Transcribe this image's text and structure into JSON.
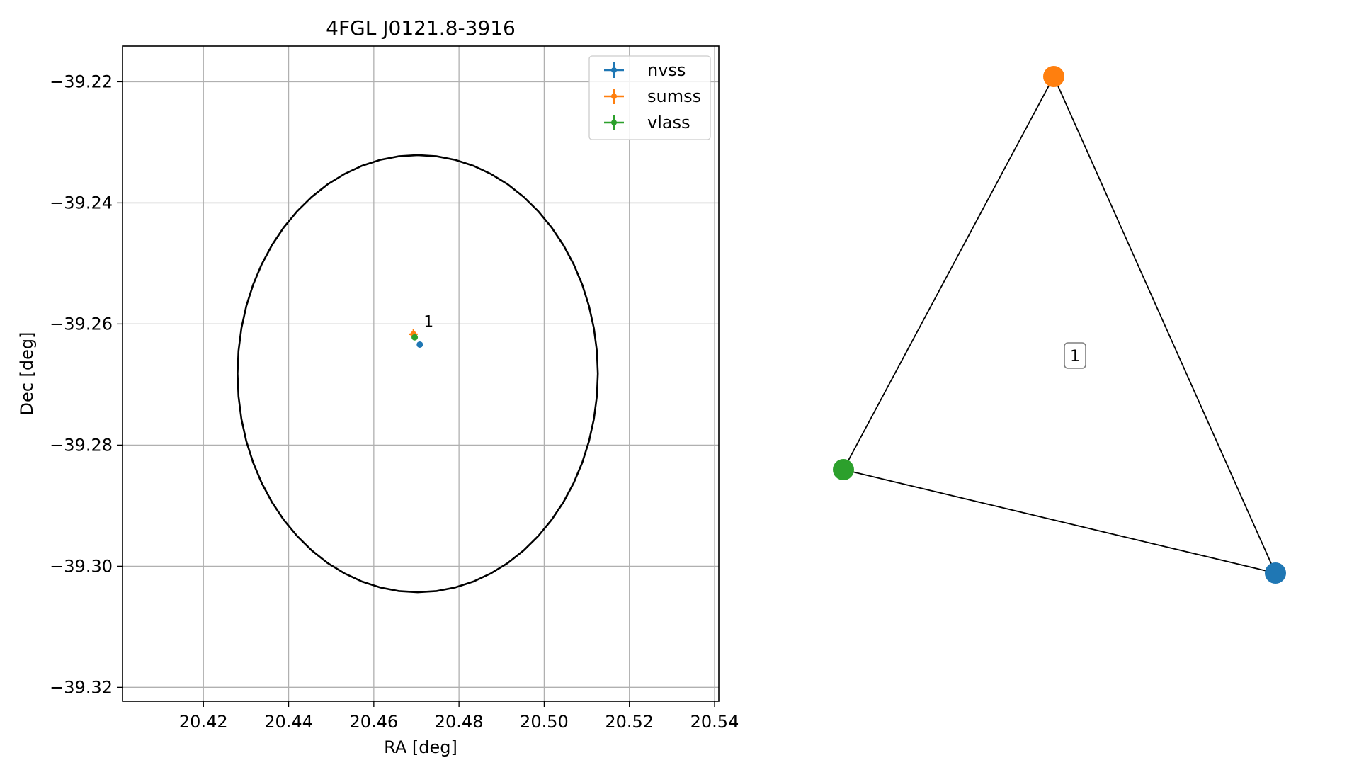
{
  "chart_data": [
    {
      "type": "scatter",
      "title": "4FGL J0121.8-3916",
      "xlabel": "RA [deg]",
      "ylabel": "Dec [deg]",
      "xlim": [
        20.401,
        20.541
      ],
      "ylim": [
        -39.3223,
        -39.2141
      ],
      "xticks": [
        20.42,
        20.44,
        20.46,
        20.48,
        20.5,
        20.52,
        20.54
      ],
      "xtick_labels": [
        "20.42",
        "20.44",
        "20.46",
        "20.48",
        "20.50",
        "20.52",
        "20.54"
      ],
      "yticks": [
        -39.22,
        -39.24,
        -39.26,
        -39.28,
        -39.3,
        -39.32
      ],
      "ytick_labels": [
        "−39.22",
        "−39.24",
        "−39.26",
        "−39.28",
        "−39.30",
        "−39.32"
      ],
      "grid": true,
      "legend_position": "top-right",
      "ellipse": {
        "center": [
          20.4703,
          -39.2682
        ],
        "ra_semi_axis": 0.0423,
        "dec_semi_axis": 0.0361,
        "color": "#000000"
      },
      "series": [
        {
          "name": "nvss",
          "color": "#1f77b4",
          "points": [
            {
              "x": 20.4708,
              "y": -39.2634
            }
          ]
        },
        {
          "name": "sumss",
          "color": "#ff7f0e",
          "points": [
            {
              "x": 20.4693,
              "y": -39.2617
            }
          ]
        },
        {
          "name": "vlass",
          "color": "#2ca02c",
          "points": [
            {
              "x": 20.4696,
              "y": -39.2622
            }
          ]
        }
      ],
      "annotations": [
        {
          "text": "1",
          "x": 20.4717,
          "y": -39.2605
        }
      ]
    },
    {
      "type": "network",
      "nodes": [
        {
          "id": "sumss",
          "color": "#ff7f0e"
        },
        {
          "id": "vlass",
          "color": "#2ca02c"
        },
        {
          "id": "nvss",
          "color": "#1f77b4"
        }
      ],
      "edges": [
        [
          "sumss",
          "vlass"
        ],
        [
          "vlass",
          "nvss"
        ],
        [
          "nvss",
          "sumss"
        ]
      ],
      "group_label": "1"
    }
  ]
}
